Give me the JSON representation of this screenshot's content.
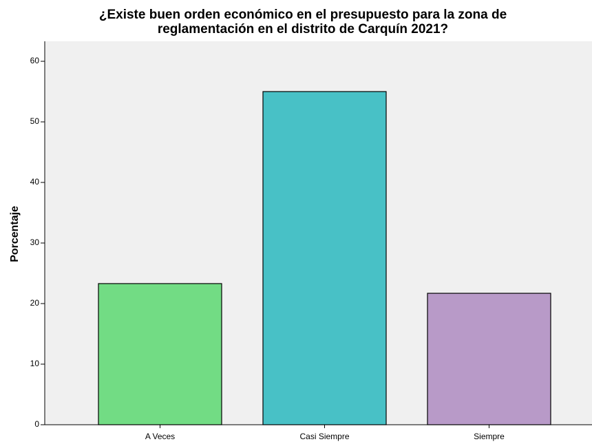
{
  "chart_data": {
    "type": "bar",
    "title": [
      "¿Existe buen orden económico en el presupuesto para la zona de",
      "reglamentación en el distrito de Carquín 2021?"
    ],
    "ylabel": "Porcentaje",
    "categories": [
      "A Veces",
      "Casi Siempre",
      "Siempre"
    ],
    "values": [
      23.3,
      55.0,
      21.7
    ],
    "colors": [
      "#72dc84",
      "#48c1c6",
      "#b89ac8"
    ],
    "ylim": [
      0,
      63.3
    ],
    "yticks": [
      0,
      10,
      20,
      30,
      40,
      50,
      60
    ],
    "grid": false
  }
}
